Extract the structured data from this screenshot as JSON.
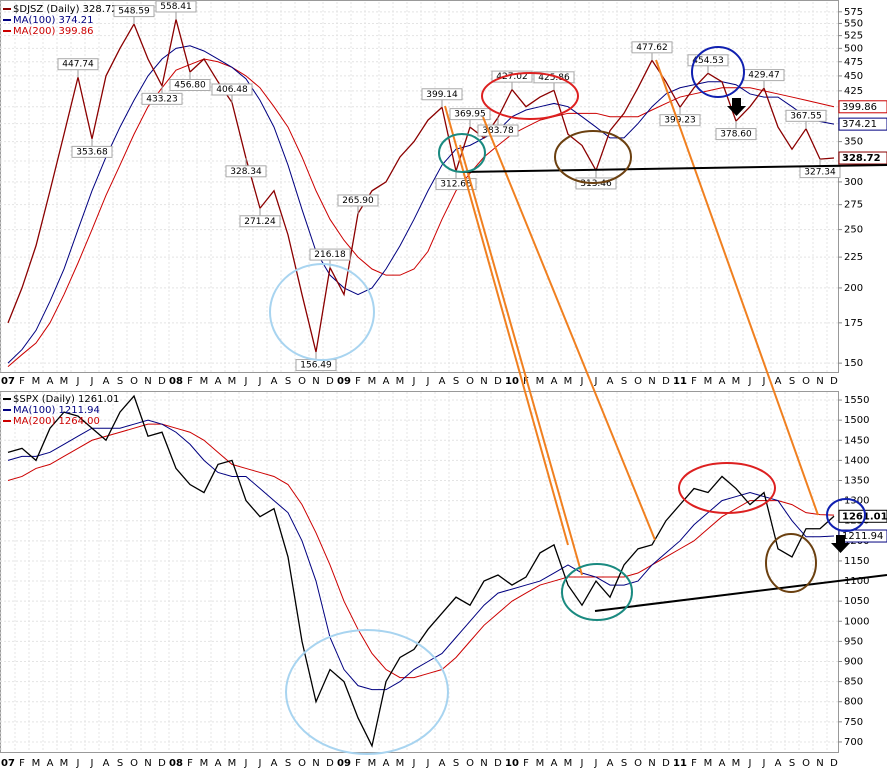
{
  "chart_data": [
    {
      "type": "line",
      "log": true,
      "grid": true,
      "categories": [
        "07",
        "F",
        "M",
        "A",
        "M",
        "J",
        "J",
        "A",
        "S",
        "O",
        "N",
        "D",
        "08",
        "F",
        "M",
        "A",
        "M",
        "J",
        "J",
        "A",
        "S",
        "O",
        "N",
        "D",
        "09",
        "F",
        "M",
        "A",
        "M",
        "J",
        "J",
        "A",
        "S",
        "O",
        "N",
        "D",
        "10",
        "F",
        "M",
        "A",
        "M",
        "J",
        "J",
        "A",
        "S",
        "O",
        "N",
        "D",
        "11",
        "F",
        "M",
        "A",
        "M",
        "J",
        "J",
        "A",
        "S",
        "O",
        "N",
        "D"
      ],
      "ylim": [
        145,
        597
      ],
      "yticks": [
        150,
        175,
        200,
        225,
        250,
        275,
        300,
        325,
        350,
        375,
        400,
        425,
        450,
        475,
        500,
        525,
        550,
        575
      ],
      "series": [
        {
          "name": "$DJSZ (Daily) 328.72",
          "color": "#8b0000",
          "end_tag": true,
          "values": [
            175,
            200,
            235,
            290,
            360,
            447.74,
            353.68,
            450,
            500,
            548.59,
            480,
            433.23,
            558.41,
            456.8,
            480,
            440,
            406.48,
            328.34,
            271.24,
            290,
            245,
            195,
            156.49,
            216.18,
            195,
            265.9,
            290,
            300,
            330,
            350,
            380,
            399.14,
            312.68,
            369.95,
            355,
            383.78,
            427.02,
            400,
            415,
            425.86,
            360,
            345,
            313.46,
            365,
            390,
            430,
            477.62,
            440,
            399.23,
            430,
            454.53,
            440,
            378.6,
            400,
            429.47,
            370,
            340,
            367.55,
            327.34,
            328.72
          ]
        },
        {
          "name": "MA(100) 374.21",
          "color": "#000080",
          "end_tag": true,
          "values": [
            150,
            158,
            170,
            190,
            215,
            250,
            290,
            330,
            370,
            410,
            450,
            480,
            500,
            505,
            495,
            480,
            465,
            445,
            410,
            370,
            320,
            270,
            230,
            210,
            200,
            195,
            200,
            215,
            235,
            260,
            290,
            320,
            340,
            345,
            355,
            365,
            385,
            395,
            400,
            405,
            400,
            385,
            370,
            355,
            355,
            375,
            400,
            420,
            430,
            435,
            440,
            440,
            435,
            420,
            415,
            415,
            400,
            385,
            378,
            374.21
          ]
        },
        {
          "name": "MA(200) 399.86",
          "color": "#cc0000",
          "end_tag": true,
          "values": [
            148,
            155,
            162,
            175,
            195,
            220,
            250,
            285,
            320,
            360,
            400,
            430,
            460,
            470,
            480,
            475,
            465,
            450,
            430,
            400,
            370,
            330,
            290,
            260,
            240,
            225,
            215,
            210,
            210,
            215,
            230,
            260,
            290,
            310,
            330,
            345,
            360,
            370,
            380,
            385,
            390,
            390,
            390,
            385,
            385,
            385,
            395,
            405,
            415,
            420,
            425,
            430,
            430,
            430,
            425,
            420,
            415,
            410,
            405,
            399.86
          ]
        }
      ],
      "annotations": [
        {
          "index": 5,
          "value": 447.74
        },
        {
          "index": 6,
          "value": 353.68
        },
        {
          "index": 9,
          "value": 548.59
        },
        {
          "index": 11,
          "value": 433.23
        },
        {
          "index": 12,
          "value": 558.41
        },
        {
          "index": 13,
          "value": 456.8,
          "label": "456.80"
        },
        {
          "index": 16,
          "value": 406.48
        },
        {
          "index": 17,
          "value": 328.34
        },
        {
          "index": 18,
          "value": 271.24
        },
        {
          "index": 22,
          "value": 156.49
        },
        {
          "index": 23,
          "value": 216.18
        },
        {
          "index": 25,
          "value": 265.9,
          "label": "265.90"
        },
        {
          "index": 31,
          "value": 399.14
        },
        {
          "index": 32,
          "value": 312.68
        },
        {
          "index": 33,
          "value": 369.95
        },
        {
          "index": 35,
          "value": 383.78
        },
        {
          "index": 36,
          "value": 427.02
        },
        {
          "index": 39,
          "value": 425.86
        },
        {
          "index": 42,
          "value": 313.46
        },
        {
          "index": 46,
          "value": 477.62
        },
        {
          "index": 48,
          "value": 399.23
        },
        {
          "index": 50,
          "value": 454.53
        },
        {
          "index": 52,
          "value": 378.6,
          "label": "378.60"
        },
        {
          "index": 54,
          "value": 429.47
        },
        {
          "index": 57,
          "value": 367.55
        },
        {
          "index": 58,
          "value": 327.34
        }
      ]
    },
    {
      "type": "line",
      "log": false,
      "grid": true,
      "categories": [
        "07",
        "F",
        "M",
        "A",
        "M",
        "J",
        "J",
        "A",
        "S",
        "O",
        "N",
        "D",
        "08",
        "F",
        "M",
        "A",
        "M",
        "J",
        "J",
        "A",
        "S",
        "O",
        "N",
        "D",
        "09",
        "F",
        "M",
        "A",
        "M",
        "J",
        "J",
        "A",
        "S",
        "O",
        "N",
        "D",
        "10",
        "F",
        "M",
        "A",
        "M",
        "J",
        "J",
        "A",
        "S",
        "O",
        "N",
        "D",
        "11",
        "F",
        "M",
        "A",
        "M",
        "J",
        "J",
        "A",
        "S",
        "O",
        "N",
        "D"
      ],
      "ylim": [
        675,
        1570
      ],
      "yticks": [
        700,
        750,
        800,
        850,
        900,
        950,
        1000,
        1050,
        1100,
        1150,
        1200,
        1250,
        1300,
        1350,
        1400,
        1450,
        1500,
        1550
      ],
      "series": [
        {
          "name": "$SPX (Daily) 1261.01",
          "color": "#000000",
          "end_tag": true,
          "values": [
            1420,
            1430,
            1400,
            1480,
            1520,
            1510,
            1480,
            1450,
            1520,
            1560,
            1460,
            1470,
            1380,
            1340,
            1320,
            1390,
            1400,
            1300,
            1260,
            1280,
            1160,
            950,
            800,
            880,
            850,
            760,
            690,
            850,
            910,
            930,
            980,
            1020,
            1060,
            1040,
            1100,
            1115,
            1090,
            1110,
            1170,
            1190,
            1090,
            1040,
            1100,
            1060,
            1140,
            1180,
            1190,
            1250,
            1290,
            1330,
            1320,
            1360,
            1330,
            1290,
            1320,
            1180,
            1160,
            1230,
            1230,
            1261.01
          ]
        },
        {
          "name": "MA(100) 1211.94",
          "color": "#000080",
          "end_tag": true,
          "values": [
            1400,
            1410,
            1410,
            1420,
            1440,
            1460,
            1480,
            1480,
            1480,
            1490,
            1500,
            1490,
            1470,
            1440,
            1400,
            1370,
            1360,
            1360,
            1330,
            1300,
            1270,
            1200,
            1100,
            960,
            880,
            840,
            830,
            830,
            850,
            880,
            900,
            920,
            960,
            1000,
            1040,
            1070,
            1080,
            1090,
            1100,
            1120,
            1140,
            1120,
            1110,
            1090,
            1090,
            1100,
            1140,
            1170,
            1200,
            1240,
            1270,
            1300,
            1310,
            1320,
            1310,
            1300,
            1250,
            1210,
            1210,
            1211.94
          ]
        },
        {
          "name": "MA(200) 1264.00",
          "color": "#cc0000",
          "end_tag": false,
          "values": [
            1350,
            1360,
            1380,
            1390,
            1410,
            1430,
            1450,
            1460,
            1470,
            1480,
            1490,
            1490,
            1480,
            1470,
            1450,
            1420,
            1390,
            1380,
            1370,
            1360,
            1340,
            1290,
            1220,
            1140,
            1050,
            980,
            920,
            880,
            860,
            860,
            870,
            880,
            910,
            950,
            990,
            1020,
            1050,
            1070,
            1090,
            1100,
            1110,
            1110,
            1110,
            1110,
            1110,
            1120,
            1140,
            1160,
            1180,
            1200,
            1230,
            1260,
            1280,
            1300,
            1300,
            1300,
            1290,
            1270,
            1265,
            1264
          ]
        }
      ]
    }
  ]
}
